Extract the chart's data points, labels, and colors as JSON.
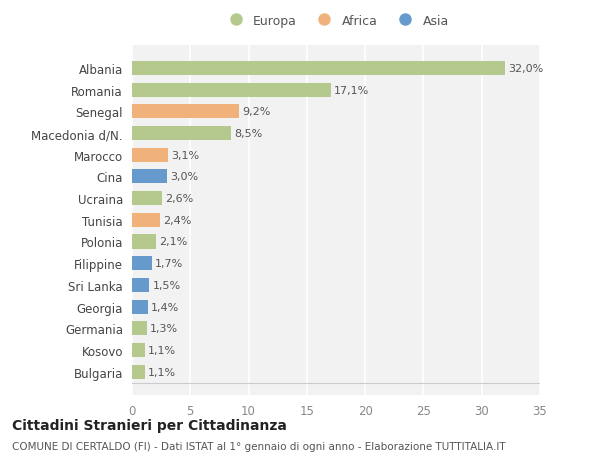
{
  "categories": [
    "Albania",
    "Romania",
    "Senegal",
    "Macedonia d/N.",
    "Marocco",
    "Cina",
    "Ucraina",
    "Tunisia",
    "Polonia",
    "Filippine",
    "Sri Lanka",
    "Georgia",
    "Germania",
    "Kosovo",
    "Bulgaria"
  ],
  "values": [
    32.0,
    17.1,
    9.2,
    8.5,
    3.1,
    3.0,
    2.6,
    2.4,
    2.1,
    1.7,
    1.5,
    1.4,
    1.3,
    1.1,
    1.1
  ],
  "labels": [
    "32,0%",
    "17,1%",
    "9,2%",
    "8,5%",
    "3,1%",
    "3,0%",
    "2,6%",
    "2,4%",
    "2,1%",
    "1,7%",
    "1,5%",
    "1,4%",
    "1,3%",
    "1,1%",
    "1,1%"
  ],
  "continent": [
    "Europa",
    "Europa",
    "Africa",
    "Europa",
    "Africa",
    "Asia",
    "Europa",
    "Africa",
    "Europa",
    "Asia",
    "Asia",
    "Asia",
    "Europa",
    "Europa",
    "Europa"
  ],
  "colors": {
    "Europa": "#b5c98e",
    "Africa": "#f0b27a",
    "Asia": "#6699cc"
  },
  "xlim": [
    0,
    35
  ],
  "xticks": [
    0,
    5,
    10,
    15,
    20,
    25,
    30,
    35
  ],
  "title": "Cittadini Stranieri per Cittadinanza",
  "subtitle": "COMUNE DI CERTALDO (FI) - Dati ISTAT al 1° gennaio di ogni anno - Elaborazione TUTTITALIA.IT",
  "bg_color": "#ffffff",
  "plot_bg_color": "#f2f2f2",
  "grid_color": "#ffffff",
  "label_fontsize": 8,
  "bar_label_color": "#555555",
  "ytick_fontsize": 8.5,
  "xtick_fontsize": 8.5,
  "title_fontsize": 10,
  "subtitle_fontsize": 7.5,
  "legend_fontsize": 9,
  "bar_height": 0.65
}
